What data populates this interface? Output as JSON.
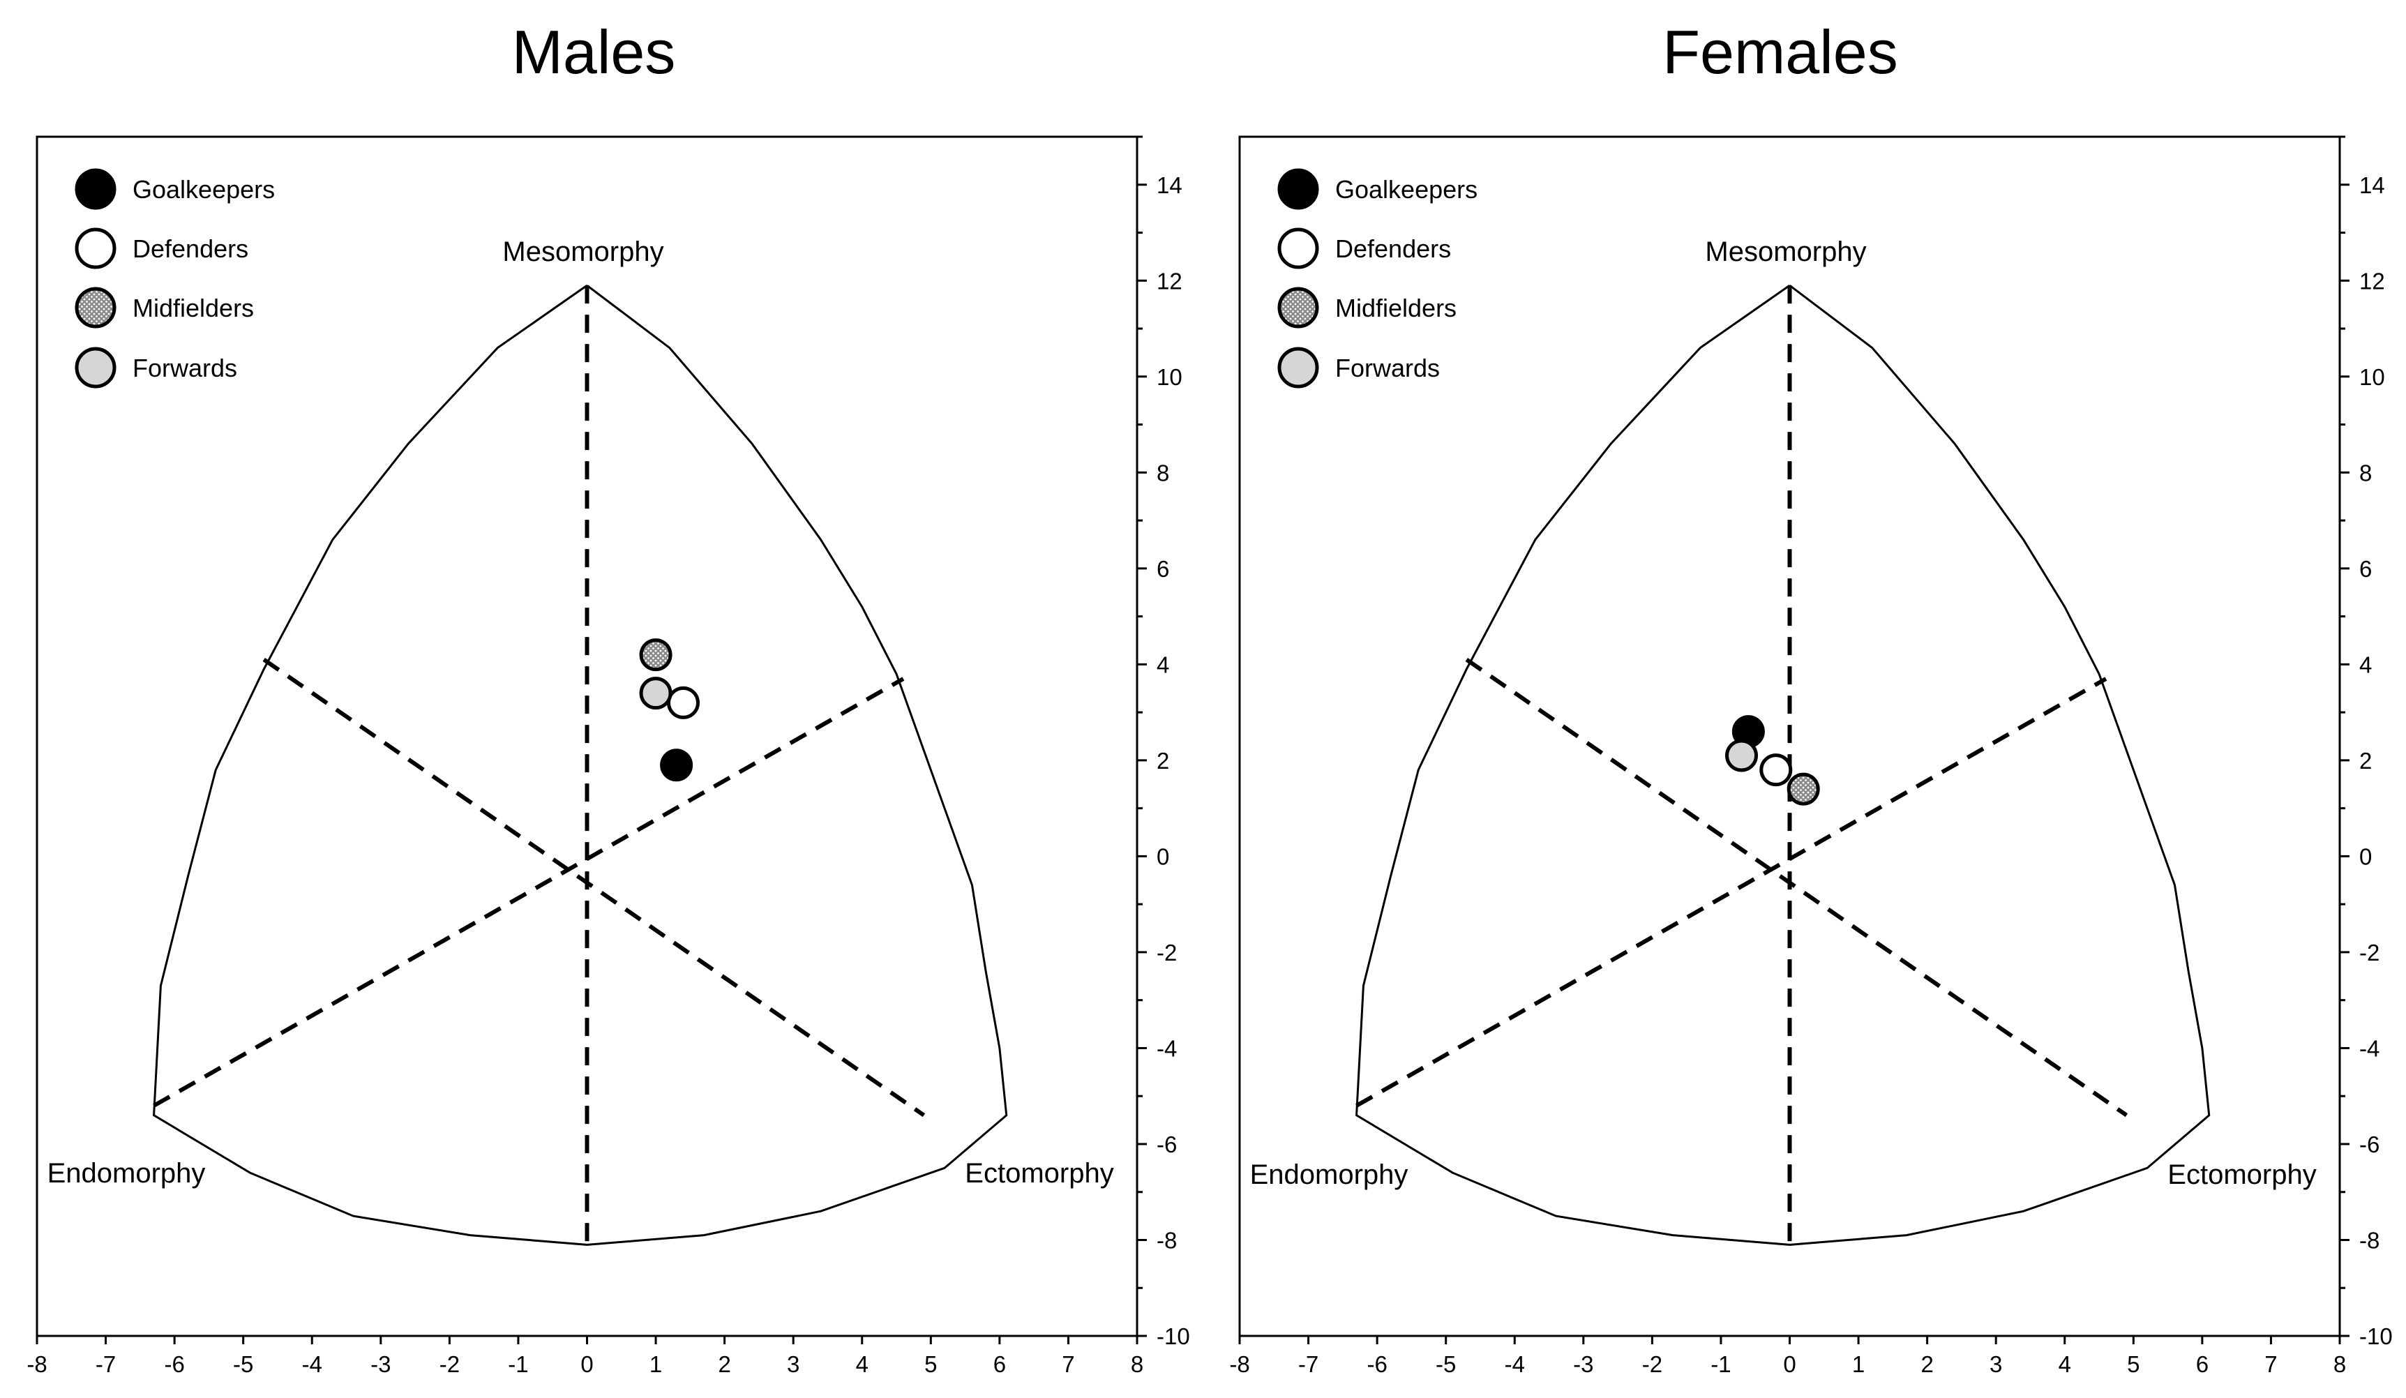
{
  "chart_data": [
    {
      "type": "scatter",
      "chart_kind": "somatochart",
      "title": "Males",
      "xlim": [
        -8,
        8
      ],
      "ylim": [
        -10,
        15
      ],
      "x_ticks": [
        -8,
        -7,
        -6,
        -5,
        -4,
        -3,
        -2,
        -1,
        0,
        1,
        2,
        3,
        4,
        5,
        6,
        7,
        8
      ],
      "y_ticks": [
        -10,
        -8,
        -6,
        -4,
        -2,
        0,
        2,
        4,
        6,
        8,
        10,
        12,
        14
      ],
      "vertex_labels": {
        "top": "Mesomorphy",
        "left": "Endomorphy",
        "right": "Ectomorphy"
      },
      "legend_position": "top-left",
      "series": [
        {
          "name": "Goalkeepers",
          "style": "black",
          "x": 1.3,
          "y": 1.9
        },
        {
          "name": "Defenders",
          "style": "white",
          "x": 1.4,
          "y": 3.2
        },
        {
          "name": "Midfielders",
          "style": "dotted",
          "x": 1.0,
          "y": 4.2
        },
        {
          "name": "Forwards",
          "style": "lightgray",
          "x": 1.0,
          "y": 3.4
        }
      ]
    },
    {
      "type": "scatter",
      "chart_kind": "somatochart",
      "title": "Females",
      "xlim": [
        -8,
        8
      ],
      "ylim": [
        -10,
        15
      ],
      "x_ticks": [
        -8,
        -7,
        -6,
        -5,
        -4,
        -3,
        -2,
        -1,
        0,
        1,
        2,
        3,
        4,
        5,
        6,
        7,
        8
      ],
      "y_ticks": [
        -10,
        -8,
        -6,
        -4,
        -2,
        0,
        2,
        4,
        6,
        8,
        10,
        12,
        14
      ],
      "vertex_labels": {
        "top": "Mesomorphy",
        "left": "Endomorphy",
        "right": "Ectomorphy"
      },
      "legend_position": "top-left",
      "series": [
        {
          "name": "Goalkeepers",
          "style": "black",
          "x": -0.6,
          "y": 2.6
        },
        {
          "name": "Defenders",
          "style": "white",
          "x": -0.2,
          "y": 1.8
        },
        {
          "name": "Midfielders",
          "style": "dotted",
          "x": 0.2,
          "y": 1.4
        },
        {
          "name": "Forwards",
          "style": "lightgray",
          "x": -0.7,
          "y": 2.1
        }
      ]
    }
  ],
  "colors": {
    "black": "#000000",
    "white": "#ffffff",
    "dotted": "#888888",
    "lightgray": "#d6d6d6",
    "stroke": "#000000"
  }
}
